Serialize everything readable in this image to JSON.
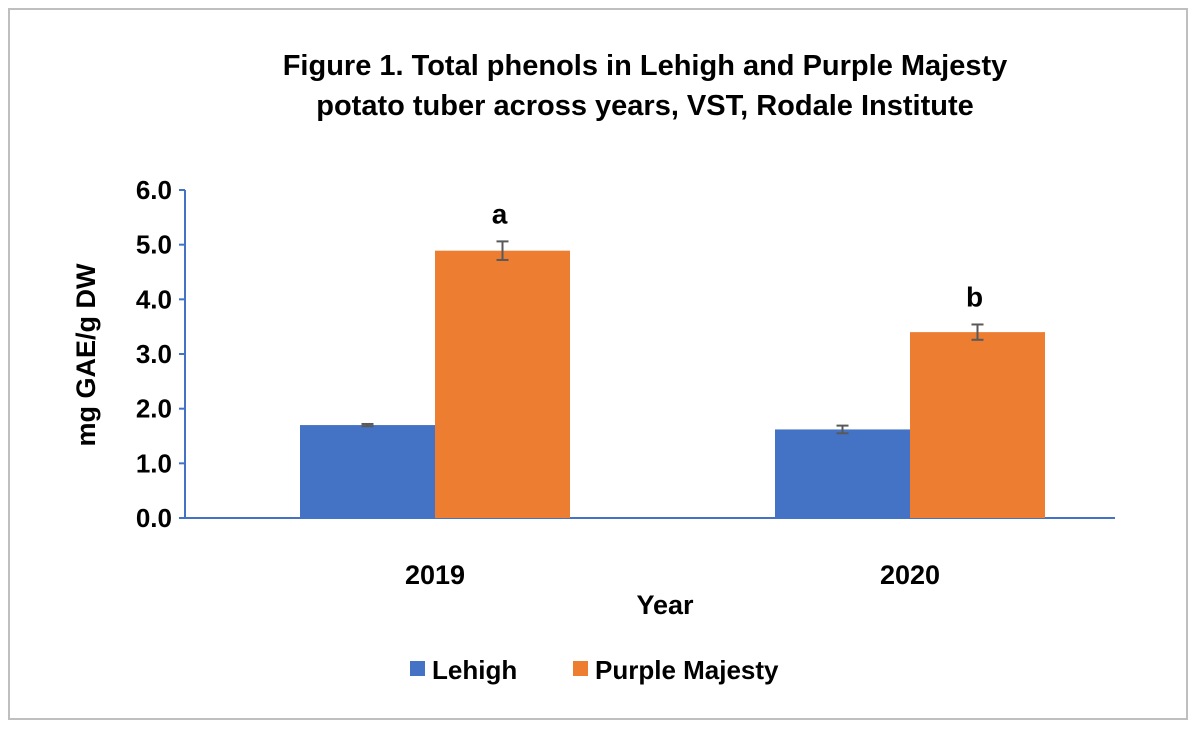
{
  "chart_data": {
    "type": "bar",
    "title_lines": [
      "Figure 1. Total phenols in Lehigh and Purple Majesty",
      "potato tuber across years, VST, Rodale Institute"
    ],
    "xlabel": "Year",
    "ylabel": "mg GAE/g DW",
    "ylim": [
      0,
      6
    ],
    "yticks": [
      "0.0",
      "1.0",
      "2.0",
      "3.0",
      "4.0",
      "5.0",
      "6.0"
    ],
    "categories": [
      "2019",
      "2020"
    ],
    "series": [
      {
        "name": "Lehigh",
        "color": "#4472c4",
        "values": [
          1.7,
          1.62
        ],
        "errors": [
          0.02,
          0.07
        ]
      },
      {
        "name": "Purple Majesty",
        "color": "#ed7d31",
        "values": [
          4.89,
          3.4
        ],
        "errors": [
          0.17,
          0.14
        ],
        "labels": [
          "a",
          "b"
        ]
      }
    ],
    "grid": false,
    "legend": "bottom",
    "axis_color": "#4472c4",
    "error_bar_color": "#595959"
  }
}
